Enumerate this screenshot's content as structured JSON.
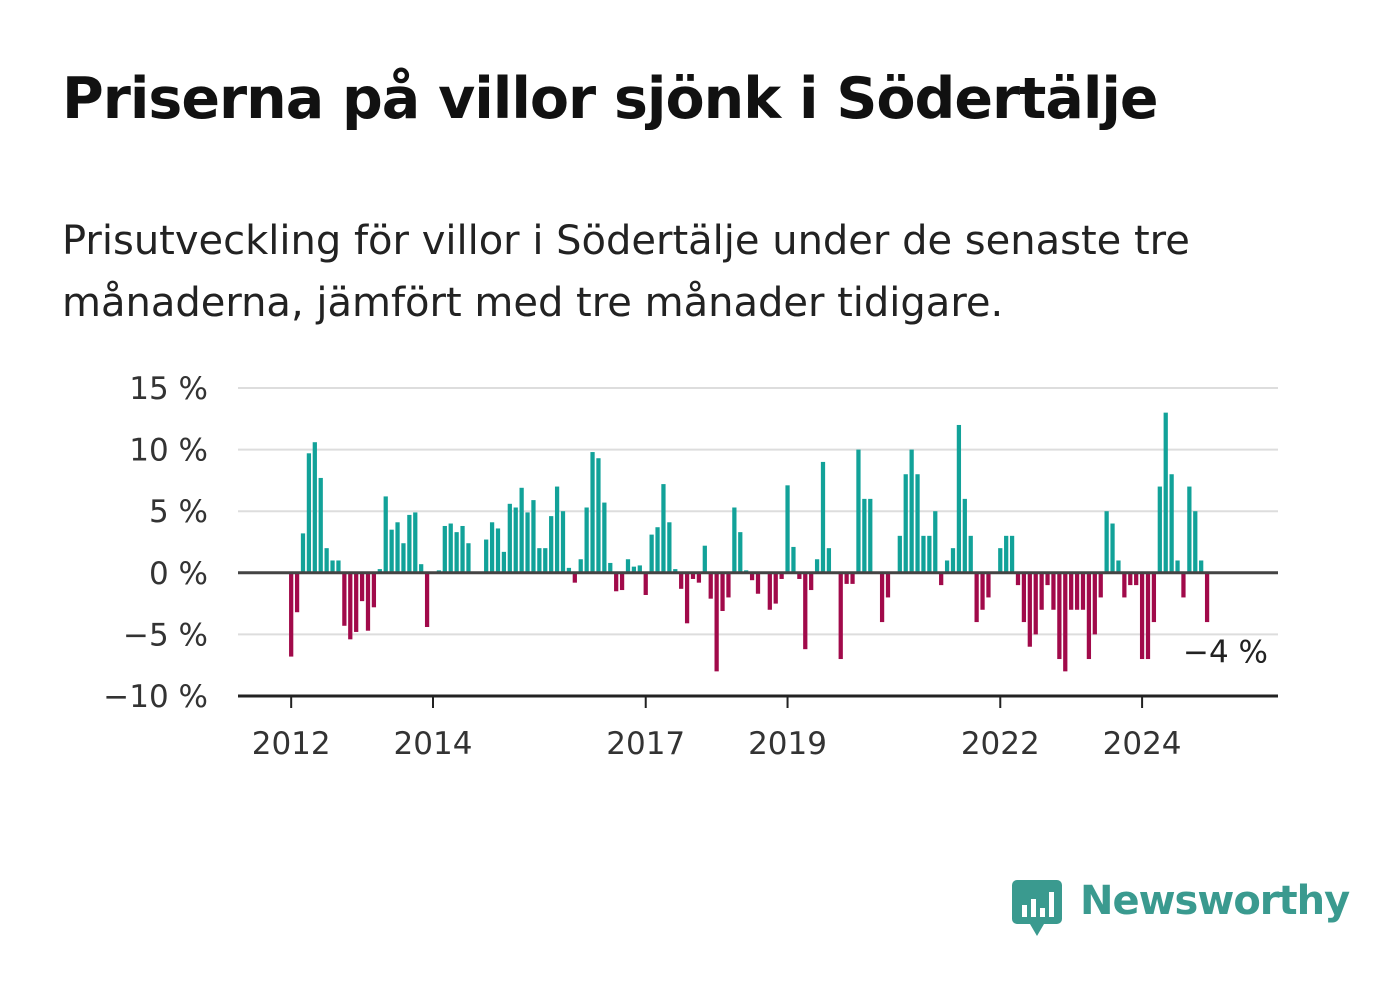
{
  "header": {
    "title": "Priserna på villor sjönk i Södertälje",
    "subtitle": "Prisutveckling för villor i Södertälje under de senaste tre månaderna, jämfört med tre månader tidigare."
  },
  "brand": {
    "name": "Newsworthy",
    "logo_icon": "newsworthy-logo-icon"
  },
  "colors": {
    "positive": "#12a299",
    "negative": "#a10a4a",
    "grid": "#dddddd",
    "axis": "#444444",
    "brand": "#3a9a8f"
  },
  "chart_data": {
    "type": "bar",
    "title": "Priserna på villor sjönk i Södertälje",
    "xlabel": "",
    "ylabel": "",
    "unit": "%",
    "ylim": [
      -10,
      15
    ],
    "yticks": [
      15,
      10,
      5,
      0,
      -5,
      -10
    ],
    "ytick_labels": [
      "15 %",
      "10 %",
      "5 %",
      "0 %",
      "−5 %",
      "−10 %"
    ],
    "xlim": [
      "2011-04",
      "2025-12"
    ],
    "xticks": [
      "2012-01",
      "2014-01",
      "2017-01",
      "2019-01",
      "2022-01",
      "2024-01"
    ],
    "xtick_labels": [
      "2012",
      "2014",
      "2017",
      "2019",
      "2022",
      "2024"
    ],
    "grid": true,
    "legend": "none",
    "start": "2012-01",
    "frequency": "monthly",
    "values": [
      -6.8,
      -3.2,
      3.2,
      9.7,
      10.6,
      7.7,
      2.0,
      1.0,
      1.0,
      -4.3,
      -5.4,
      -4.8,
      -2.3,
      -4.7,
      -2.8,
      0.3,
      6.2,
      3.5,
      4.1,
      2.4,
      4.7,
      4.9,
      0.7,
      -4.4,
      0.0,
      0.2,
      3.8,
      4.0,
      3.3,
      3.8,
      2.4,
      0.1,
      0.0,
      2.7,
      4.1,
      3.6,
      1.7,
      5.6,
      5.3,
      6.9,
      4.9,
      5.9,
      2.0,
      2.0,
      4.6,
      7.0,
      5.0,
      0.4,
      -0.8,
      1.1,
      5.3,
      9.8,
      9.3,
      5.7,
      0.8,
      -1.5,
      -1.4,
      1.1,
      0.5,
      0.6,
      -1.8,
      3.1,
      3.7,
      7.2,
      4.1,
      0.3,
      -1.3,
      -4.1,
      -0.5,
      -0.8,
      2.2,
      -2.1,
      -8.0,
      -3.1,
      -2.0,
      5.3,
      3.3,
      0.2,
      -0.6,
      -1.7,
      0.0,
      -3.0,
      -2.5,
      -0.5,
      7.1,
      2.1,
      -0.5,
      -6.2,
      -1.4,
      1.1,
      9.0,
      2.0,
      0.0,
      -7.0,
      -0.9,
      -0.9,
      10.0,
      6.0,
      6.0,
      0.0,
      -4.0,
      -2.0,
      0.0,
      3.0,
      8.0,
      10.0,
      8.0,
      3.0,
      3.0,
      5.0,
      -1.0,
      1.0,
      2.0,
      12.0,
      6.0,
      3.0,
      -4.0,
      -3.0,
      -2.0,
      0.0,
      2.0,
      3.0,
      3.0,
      -1.0,
      -4.0,
      -6.0,
      -5.0,
      -3.0,
      -1.0,
      -3.0,
      -7.0,
      -8.0,
      -3.0,
      -3.0,
      -3.0,
      -7.0,
      -5.0,
      -2.0,
      5.0,
      4.0,
      1.0,
      -2.0,
      -1.0,
      -1.0,
      -7.0,
      -7.0,
      -4.0,
      7.0,
      13.0,
      8.0,
      1.0,
      -2.0,
      7.0,
      5.0,
      1.0,
      -4.0
    ],
    "end_label": "−4 %"
  }
}
